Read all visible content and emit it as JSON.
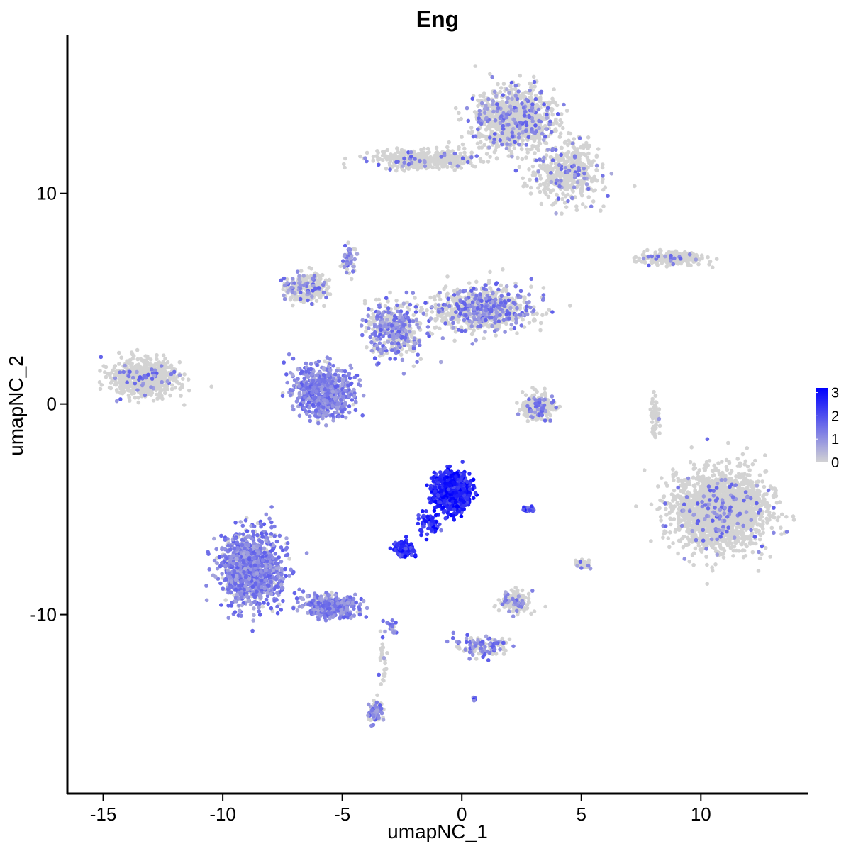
{
  "chart_data": {
    "type": "scatter",
    "title": "Eng",
    "xlabel": "umapNC_1",
    "ylabel": "umapNC_2",
    "xlim": [
      -16.5,
      14.5
    ],
    "ylim": [
      -18.5,
      17.5
    ],
    "x_ticks": [
      -15,
      -10,
      -5,
      0,
      5,
      10
    ],
    "x_tick_labels": [
      "-15",
      "-10",
      "-5",
      "0",
      "5",
      "10"
    ],
    "y_ticks": [
      -10,
      0,
      10
    ],
    "y_tick_labels": [
      "-10",
      "0",
      "10"
    ],
    "grid": false,
    "color_scale": {
      "name": "expression",
      "low_color": "#d3d3d3",
      "high_color": "#0000ff",
      "min": 0,
      "max": 3.2,
      "ticks": [
        0,
        1,
        2,
        3
      ],
      "tick_labels": [
        "0",
        "1",
        "2",
        "3"
      ],
      "legend_position": "right"
    },
    "clusters": [
      {
        "center": [
          10.8,
          -5.0
        ],
        "spread": [
          1.7,
          1.6
        ],
        "n": 2200,
        "expression": 0.05
      },
      {
        "center": [
          -13.3,
          1.2
        ],
        "spread": [
          1.2,
          0.75
        ],
        "n": 700,
        "expression": 0.05
      },
      {
        "center": [
          2.2,
          13.5
        ],
        "spread": [
          1.5,
          1.3
        ],
        "n": 1000,
        "expression": 0.15
      },
      {
        "center": [
          -1.5,
          11.6
        ],
        "spread": [
          2.0,
          0.4
        ],
        "n": 400,
        "expression": 0.08
      },
      {
        "center": [
          4.4,
          11.0
        ],
        "spread": [
          1.2,
          1.3
        ],
        "n": 500,
        "expression": 0.12
      },
      {
        "center": [
          -6.5,
          5.5
        ],
        "spread": [
          0.8,
          0.6
        ],
        "n": 300,
        "expression": 0.2
      },
      {
        "center": [
          0.8,
          4.5
        ],
        "spread": [
          1.9,
          0.9
        ],
        "n": 800,
        "expression": 0.3
      },
      {
        "center": [
          -2.8,
          3.5
        ],
        "spread": [
          1.1,
          1.2
        ],
        "n": 400,
        "expression": 0.5
      },
      {
        "center": [
          -5.8,
          0.6
        ],
        "spread": [
          1.1,
          1.0
        ],
        "n": 700,
        "expression": 0.9
      },
      {
        "center": [
          -8.8,
          -7.8
        ],
        "spread": [
          1.1,
          1.6
        ],
        "n": 1100,
        "expression": 0.85
      },
      {
        "center": [
          -5.5,
          -9.6
        ],
        "spread": [
          1.0,
          0.45
        ],
        "n": 400,
        "expression": 0.9
      },
      {
        "center": [
          -0.4,
          -4.2
        ],
        "spread": [
          0.65,
          0.8
        ],
        "n": 900,
        "expression": 2.7
      },
      {
        "center": [
          -2.4,
          -6.9
        ],
        "spread": [
          0.35,
          0.3
        ],
        "n": 200,
        "expression": 2.5
      },
      {
        "center": [
          -1.4,
          -5.7
        ],
        "spread": [
          0.4,
          0.45
        ],
        "n": 60,
        "expression": 2.4
      },
      {
        "center": [
          3.2,
          -0.1
        ],
        "spread": [
          0.6,
          0.55
        ],
        "n": 250,
        "expression": 0.15
      },
      {
        "center": [
          8.8,
          6.9
        ],
        "spread": [
          1.2,
          0.25
        ],
        "n": 250,
        "expression": 0.05
      },
      {
        "center": [
          2.2,
          -9.4
        ],
        "spread": [
          0.55,
          0.45
        ],
        "n": 150,
        "expression": 0.15
      },
      {
        "center": [
          0.8,
          -11.5
        ],
        "spread": [
          1.0,
          0.5
        ],
        "n": 120,
        "expression": 0.6
      },
      {
        "center": [
          -3.6,
          -14.6
        ],
        "spread": [
          0.25,
          0.5
        ],
        "n": 80,
        "expression": 0.5
      },
      {
        "center": [
          -4.7,
          6.8
        ],
        "spread": [
          0.25,
          0.7
        ],
        "n": 50,
        "expression": 0.5
      },
      {
        "center": [
          8.1,
          -0.6
        ],
        "spread": [
          0.15,
          0.9
        ],
        "n": 60,
        "expression": 0.08
      },
      {
        "center": [
          5.0,
          -7.6
        ],
        "spread": [
          0.3,
          0.25
        ],
        "n": 40,
        "expression": 0.1
      },
      {
        "center": [
          2.8,
          -5.0
        ],
        "spread": [
          0.2,
          0.1
        ],
        "n": 20,
        "expression": 1.8
      },
      {
        "center": [
          0.55,
          -14.0
        ],
        "spread": [
          0.1,
          0.08
        ],
        "n": 10,
        "expression": 2.0
      },
      {
        "center": [
          -3.0,
          -10.5
        ],
        "spread": [
          0.3,
          0.3
        ],
        "n": 20,
        "expression": 0.9
      },
      {
        "center": [
          -3.3,
          -12.3
        ],
        "spread": [
          0.15,
          0.9
        ],
        "n": 25,
        "expression": 0.2
      }
    ]
  }
}
